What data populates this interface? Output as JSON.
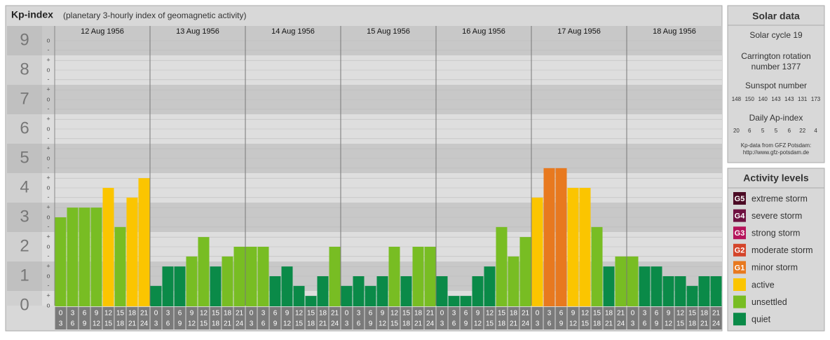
{
  "chart_data": {
    "type": "bar",
    "title": "Kp-index",
    "subtitle": "(planetary 3-hourly index of geomagnetic activity)",
    "days": [
      "12 Aug 1956",
      "13 Aug 1956",
      "14 Aug 1956",
      "15 Aug 1956",
      "16 Aug 1956",
      "17 Aug 1956",
      "18 Aug 1956"
    ],
    "hour_labels": [
      [
        0,
        3
      ],
      [
        3,
        6
      ],
      [
        6,
        9
      ],
      [
        9,
        12
      ],
      [
        12,
        15
      ],
      [
        15,
        18
      ],
      [
        18,
        21
      ],
      [
        21,
        24
      ]
    ],
    "values": [
      3,
      3.33,
      3.33,
      3.33,
      4,
      2.67,
      3.67,
      4.33,
      0.67,
      1.33,
      1.33,
      1.67,
      2.33,
      1.33,
      1.67,
      2,
      2,
      2,
      1,
      1.33,
      0.67,
      0.33,
      1,
      2,
      0.67,
      1,
      0.67,
      1,
      2,
      1,
      2,
      2,
      1,
      0.33,
      0.33,
      1,
      1.33,
      2.67,
      1.67,
      2.33,
      3.67,
      4.67,
      4.67,
      4,
      4,
      2.67,
      1.33,
      1.67,
      1.67,
      1.33,
      1.33,
      1,
      1,
      0.67,
      1,
      1
    ],
    "colors": [
      "#78bd23",
      "#78bd23",
      "#78bd23",
      "#78bd23",
      "#fbc500",
      "#78bd23",
      "#fbc500",
      "#fbc500",
      "#0a8a48",
      "#0a8a48",
      "#0a8a48",
      "#78bd23",
      "#78bd23",
      "#0a8a48",
      "#78bd23",
      "#78bd23",
      "#78bd23",
      "#78bd23",
      "#0a8a48",
      "#0a8a48",
      "#0a8a48",
      "#0a8a48",
      "#0a8a48",
      "#78bd23",
      "#0a8a48",
      "#0a8a48",
      "#0a8a48",
      "#0a8a48",
      "#78bd23",
      "#0a8a48",
      "#78bd23",
      "#78bd23",
      "#0a8a48",
      "#0a8a48",
      "#0a8a48",
      "#0a8a48",
      "#0a8a48",
      "#78bd23",
      "#78bd23",
      "#78bd23",
      "#fbc500",
      "#e8791f",
      "#e8791f",
      "#fbc500",
      "#fbc500",
      "#78bd23",
      "#0a8a48",
      "#78bd23",
      "#78bd23",
      "#0a8a48",
      "#0a8a48",
      "#0a8a48",
      "#0a8a48",
      "#0a8a48",
      "#0a8a48",
      "#0a8a48"
    ],
    "ylim": [
      0,
      9.5
    ],
    "yticks": [
      0,
      1,
      2,
      3,
      4,
      5,
      6,
      7,
      8,
      9
    ],
    "minor_ticks": [
      {
        "value": 0,
        "label": "o"
      },
      {
        "value": 0.33,
        "label": "+"
      },
      {
        "value": 0.67,
        "label": "-"
      },
      {
        "value": 1,
        "label": "o"
      },
      {
        "value": 1.33,
        "label": "+"
      },
      {
        "value": 1.67,
        "label": "-"
      },
      {
        "value": 2,
        "label": "o"
      },
      {
        "value": 2.33,
        "label": "+"
      },
      {
        "value": 2.67,
        "label": "-"
      },
      {
        "value": 3,
        "label": "o"
      },
      {
        "value": 3.33,
        "label": "+"
      },
      {
        "value": 3.67,
        "label": "-"
      },
      {
        "value": 4,
        "label": "o"
      },
      {
        "value": 4.33,
        "label": "+"
      },
      {
        "value": 4.67,
        "label": "-"
      },
      {
        "value": 5,
        "label": "o"
      },
      {
        "value": 5.33,
        "label": "+"
      },
      {
        "value": 5.67,
        "label": "-"
      },
      {
        "value": 6,
        "label": "o"
      },
      {
        "value": 6.33,
        "label": "+"
      },
      {
        "value": 6.67,
        "label": "-"
      },
      {
        "value": 7,
        "label": "o"
      },
      {
        "value": 7.33,
        "label": "+"
      },
      {
        "value": 7.67,
        "label": "-"
      },
      {
        "value": 8,
        "label": "o"
      },
      {
        "value": 8.33,
        "label": "+"
      },
      {
        "value": 8.67,
        "label": "-"
      },
      {
        "value": 9,
        "label": "o"
      }
    ],
    "grid": true
  },
  "solar_data": {
    "title": "Solar data",
    "cycle": "Solar cycle 19",
    "carrington": [
      "Carrington rotation",
      "number 1377"
    ],
    "sunspot_title": "Sunspot number",
    "sunspots": [
      148,
      150,
      140,
      143,
      143,
      131,
      173
    ],
    "ap_title": "Daily Ap-index",
    "ap": [
      20,
      6,
      5,
      5,
      6,
      22,
      4
    ],
    "source": [
      "Kp-data from GFZ Potsdam:",
      "http://www.gfz-potsdam.de"
    ]
  },
  "legend": {
    "title": "Activity levels",
    "items": [
      {
        "badge": "G5",
        "label": "extreme storm",
        "color": "#4b0a24"
      },
      {
        "badge": "G4",
        "label": "severe storm",
        "color": "#6e1040"
      },
      {
        "badge": "G3",
        "label": "strong storm",
        "color": "#b5135a"
      },
      {
        "badge": "G2",
        "label": "moderate storm",
        "color": "#d4442a"
      },
      {
        "badge": "G1",
        "label": "minor storm",
        "color": "#e8791f"
      },
      {
        "label": "active",
        "color": "#fbc500"
      },
      {
        "label": "unsettled",
        "color": "#78bd23"
      },
      {
        "label": "quiet",
        "color": "#0a8a48"
      }
    ]
  }
}
